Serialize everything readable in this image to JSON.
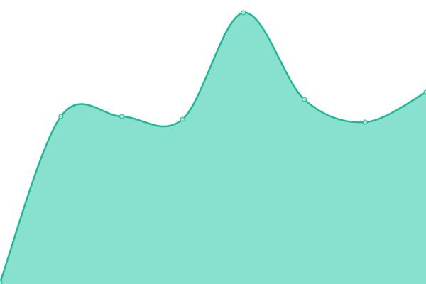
{
  "chart_data": {
    "type": "area",
    "categories": [
      null,
      null,
      null,
      null,
      null,
      null,
      null,
      null
    ],
    "values": [
      0.5,
      59,
      59,
      58,
      95.5,
      65,
      57,
      67.5
    ],
    "color": "#1fb794",
    "fill_color": "#88e0cf",
    "marker_fill": "#a6e8da",
    "ylim": [
      0,
      100
    ]
  }
}
